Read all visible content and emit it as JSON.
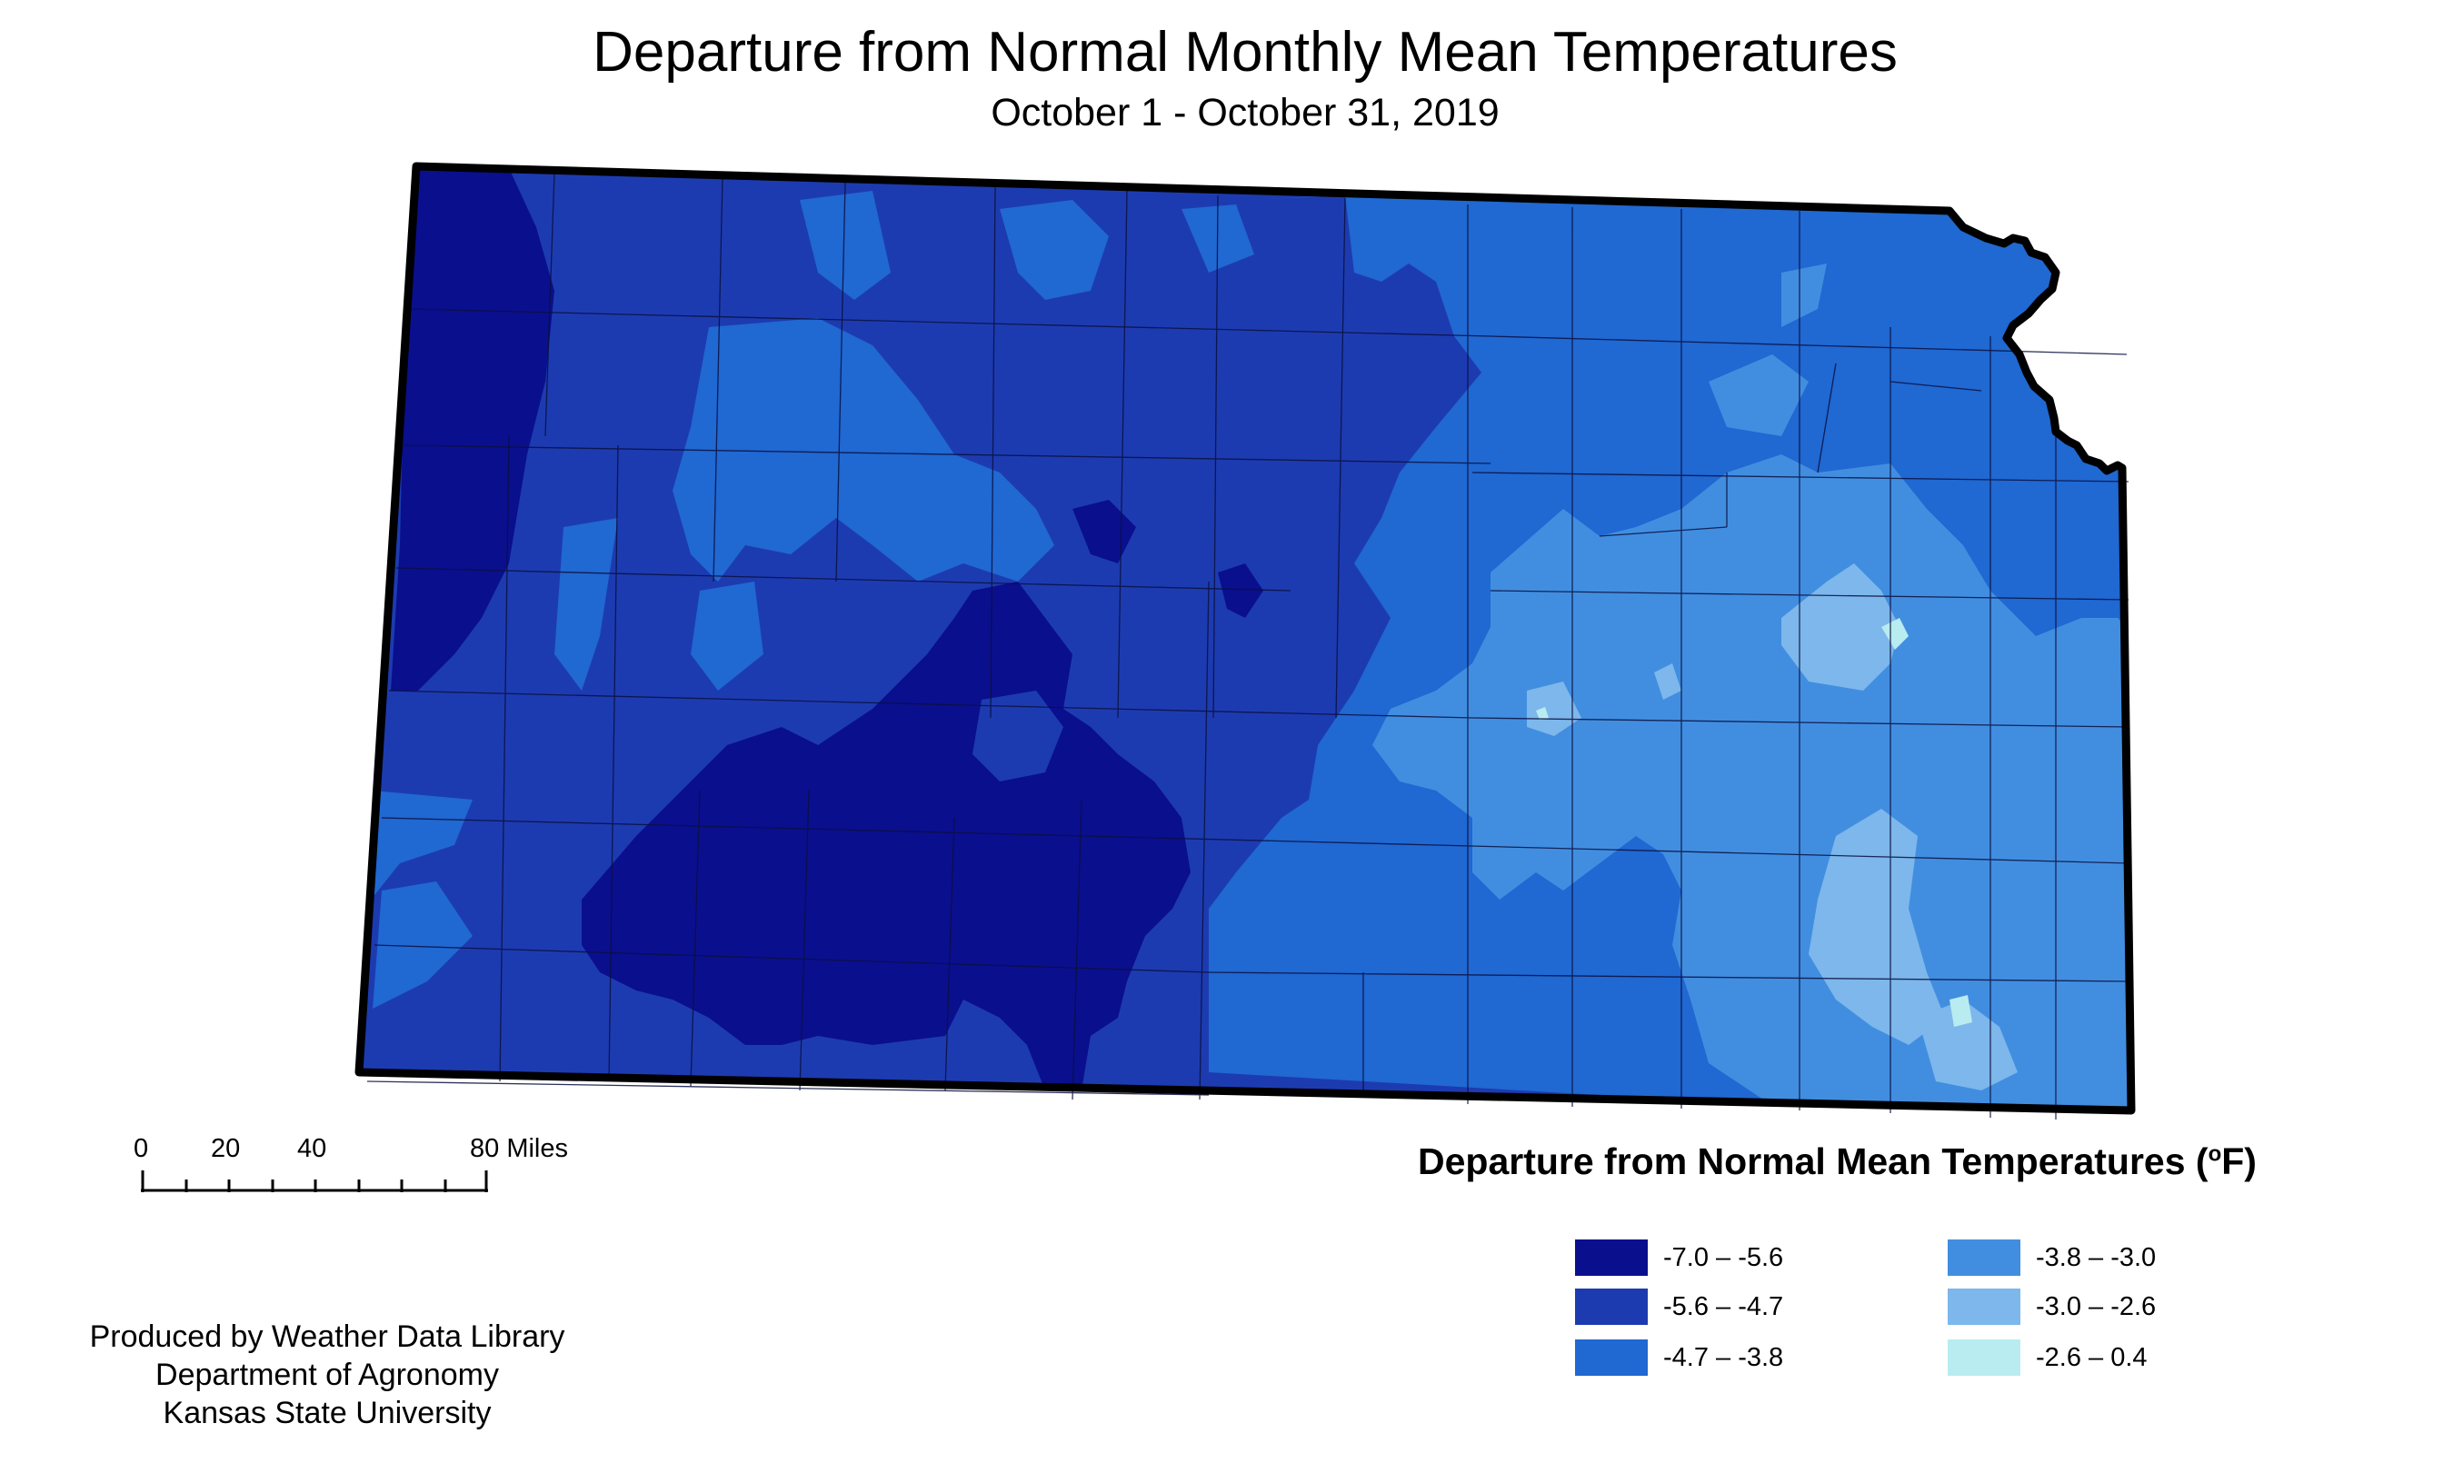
{
  "title": "Departure from Normal Monthly Mean Temperatures",
  "subtitle": "October 1 - October 31, 2019",
  "scale_bar": {
    "labels": [
      "0",
      "20",
      "40",
      "80 Miles"
    ]
  },
  "credits": [
    "Produced by Weather Data Library",
    "Department of Agronomy",
    "Kansas State University"
  ],
  "legend": {
    "title": "Departure from Normal Mean Temperatures (",
    "unit_sup": "o",
    "unit_tail": "F)",
    "items": [
      {
        "label": "-7.0 – -5.6",
        "color": "#0a0f8e"
      },
      {
        "label": "-5.6 – -4.7",
        "color": "#1d3bb0"
      },
      {
        "label": "-4.7 – -3.8",
        "color": "#2068d2"
      },
      {
        "label": "-3.8 – -3.0",
        "color": "#418ee0"
      },
      {
        "label": "-3.0 – -2.6",
        "color": "#7db7eb"
      },
      {
        "label": "-2.6 – 0.4",
        "color": "#b8ecf0"
      }
    ]
  }
}
